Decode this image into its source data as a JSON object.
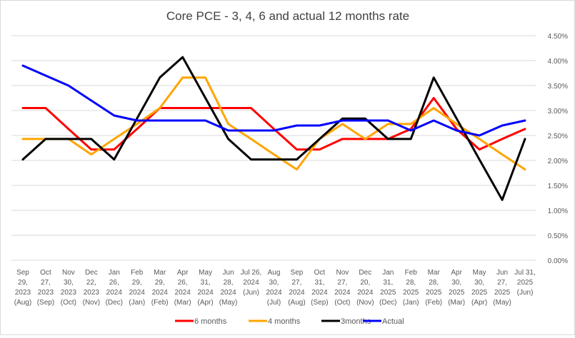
{
  "chart_data": {
    "type": "line",
    "title": "Core PCE - 3, 4, 6 and actual 12 months rate",
    "ylim": [
      0,
      0.045
    ],
    "y_axis_side": "right",
    "y_ticks": [
      "0.00%",
      "0.50%",
      "1.00%",
      "1.50%",
      "2.00%",
      "2.50%",
      "3.00%",
      "3.50%",
      "4.00%",
      "4.50%"
    ],
    "y_tick_values": [
      0,
      0.005,
      0.01,
      0.015,
      0.02,
      0.025,
      0.03,
      0.035,
      0.04,
      0.045
    ],
    "grid": "horizontal",
    "legend_position": "bottom",
    "categories": [
      [
        "Sep",
        "29,",
        "2023",
        "(Aug)"
      ],
      [
        "Oct",
        "27,",
        "2023",
        "(Sep)"
      ],
      [
        "Nov",
        "30,",
        "2023",
        "(Oct)"
      ],
      [
        "Dec",
        "22,",
        "2023",
        "(Nov)"
      ],
      [
        "Jan",
        "26,",
        "2024",
        "(Dec)"
      ],
      [
        "Feb",
        "29,",
        "2024",
        "(Jan)"
      ],
      [
        "Mar",
        "29,",
        "2024",
        "(Feb)"
      ],
      [
        "Apr",
        "26,",
        "2024",
        "(Mar)"
      ],
      [
        "May",
        "31,",
        "2024",
        "(Apr)"
      ],
      [
        "Jun",
        "28,",
        "2024",
        "(May)"
      ],
      [
        "Jul 26,",
        "2024",
        "(Jun)"
      ],
      [
        "Aug",
        "30,",
        "2024",
        "(Jul)"
      ],
      [
        "Sep",
        "27,",
        "2024",
        "(Aug)"
      ],
      [
        "Oct",
        "31,",
        "2024",
        "(Sep)"
      ],
      [
        "Nov",
        "27,",
        "2024",
        "(Oct)"
      ],
      [
        "Dec",
        "20,",
        "2024",
        "(Nov)"
      ],
      [
        "Jan",
        "31,",
        "2025",
        "(Dec)"
      ],
      [
        "Feb",
        "28,",
        "2025",
        "(Jan)"
      ],
      [
        "Mar",
        "28,",
        "2025",
        "(Feb)"
      ],
      [
        "Apr",
        "30,",
        "2025",
        "(Mar)"
      ],
      [
        "May",
        "30,",
        "2025",
        "(Apr)"
      ],
      [
        "Jun",
        "27,",
        "2025",
        "(May)"
      ],
      [
        "Jul 31,",
        "2025",
        "(Jun)"
      ]
    ],
    "series": [
      {
        "name": "6 months",
        "color": "#ff0000",
        "values": [
          0.0305,
          0.0305,
          0.0263,
          0.0222,
          0.0222,
          0.0263,
          0.0305,
          0.0305,
          0.0305,
          0.0305,
          0.0305,
          0.0263,
          0.0222,
          0.0222,
          0.0243,
          0.0243,
          0.0243,
          0.0263,
          0.0325,
          0.0263,
          0.0222,
          0.0243,
          0.0263
        ]
      },
      {
        "name": "4 months",
        "color": "#ffa500",
        "values": [
          0.0243,
          0.0243,
          0.0243,
          0.0212,
          0.0243,
          0.0273,
          0.0305,
          0.0366,
          0.0366,
          0.0273,
          0.0243,
          0.0212,
          0.0182,
          0.0243,
          0.0273,
          0.0243,
          0.0273,
          0.0273,
          0.0305,
          0.0273,
          0.0243,
          0.0212,
          0.0182
        ]
      },
      {
        "name": "3months",
        "color": "#000000",
        "values": [
          0.0202,
          0.0243,
          0.0243,
          0.0243,
          0.0202,
          0.0284,
          0.0366,
          0.0407,
          0.0325,
          0.0243,
          0.0202,
          0.0202,
          0.0202,
          0.0243,
          0.0284,
          0.0284,
          0.0243,
          0.0243,
          0.0366,
          0.0284,
          0.0202,
          0.0121,
          0.0243
        ]
      },
      {
        "name": "Actual",
        "color": "#0000ff",
        "values": [
          0.039,
          0.037,
          0.035,
          0.032,
          0.029,
          0.028,
          0.028,
          0.028,
          0.028,
          0.026,
          0.026,
          0.026,
          0.027,
          0.027,
          0.028,
          0.028,
          0.028,
          0.026,
          0.028,
          0.026,
          0.025,
          0.027,
          0.028
        ]
      }
    ]
  }
}
